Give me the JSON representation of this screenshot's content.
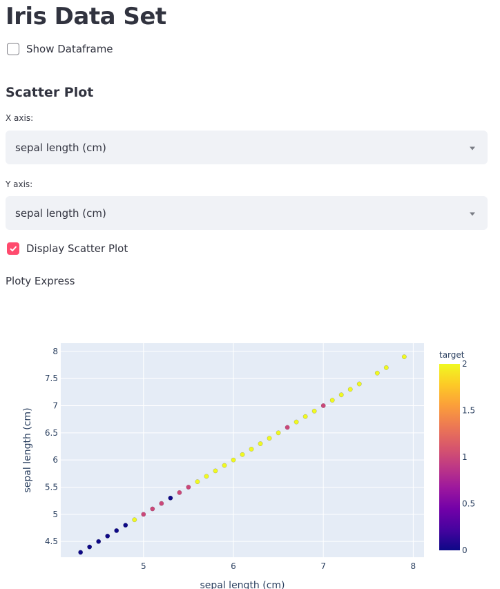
{
  "page": {
    "title": "Iris Data Set"
  },
  "show_dataframe": {
    "label": "Show Dataframe",
    "checked": false
  },
  "scatter_section": {
    "title": "Scatter Plot"
  },
  "x_axis_select": {
    "label": "X axis:",
    "value": "sepal length (cm)"
  },
  "y_axis_select": {
    "label": "Y axis:",
    "value": "sepal length (cm)"
  },
  "display_scatter": {
    "label": "Display Scatter Plot",
    "checked": true
  },
  "caption": "Ploty Express",
  "colors": {
    "accent": "#ff4b6e",
    "plot_bg": "#e5ecf6",
    "select_bg": "#f0f2f6"
  },
  "chart_data": {
    "type": "scatter",
    "xlabel": "sepal length (cm)",
    "ylabel": "sepal length (cm)",
    "xlim": [
      4.08,
      8.12
    ],
    "ylim": [
      4.21,
      8.15
    ],
    "x_ticks": [
      5,
      6,
      7,
      8
    ],
    "y_ticks": [
      4.5,
      5,
      5.5,
      6,
      6.5,
      7,
      7.5,
      8
    ],
    "grid": true,
    "colorbar": {
      "title": "target",
      "range": [
        0,
        2
      ],
      "ticks": [
        0,
        0.5,
        1,
        1.5,
        2
      ]
    },
    "points": [
      {
        "x": 4.3,
        "y": 4.3,
        "color": 0
      },
      {
        "x": 4.4,
        "y": 4.4,
        "color": 0
      },
      {
        "x": 4.5,
        "y": 4.5,
        "color": 0
      },
      {
        "x": 4.6,
        "y": 4.6,
        "color": 0
      },
      {
        "x": 4.7,
        "y": 4.7,
        "color": 0
      },
      {
        "x": 4.8,
        "y": 4.8,
        "color": 0
      },
      {
        "x": 4.9,
        "y": 4.9,
        "color": 2
      },
      {
        "x": 5.0,
        "y": 5.0,
        "color": 1
      },
      {
        "x": 5.1,
        "y": 5.1,
        "color": 1
      },
      {
        "x": 5.2,
        "y": 5.2,
        "color": 1
      },
      {
        "x": 5.3,
        "y": 5.3,
        "color": 0
      },
      {
        "x": 5.4,
        "y": 5.4,
        "color": 1
      },
      {
        "x": 5.5,
        "y": 5.5,
        "color": 1
      },
      {
        "x": 5.6,
        "y": 5.6,
        "color": 2
      },
      {
        "x": 5.7,
        "y": 5.7,
        "color": 2
      },
      {
        "x": 5.8,
        "y": 5.8,
        "color": 2
      },
      {
        "x": 5.9,
        "y": 5.9,
        "color": 2
      },
      {
        "x": 6.0,
        "y": 6.0,
        "color": 2
      },
      {
        "x": 6.1,
        "y": 6.1,
        "color": 2
      },
      {
        "x": 6.2,
        "y": 6.2,
        "color": 2
      },
      {
        "x": 6.3,
        "y": 6.3,
        "color": 2
      },
      {
        "x": 6.4,
        "y": 6.4,
        "color": 2
      },
      {
        "x": 6.5,
        "y": 6.5,
        "color": 2
      },
      {
        "x": 6.6,
        "y": 6.6,
        "color": 1
      },
      {
        "x": 6.7,
        "y": 6.7,
        "color": 2
      },
      {
        "x": 6.8,
        "y": 6.8,
        "color": 2
      },
      {
        "x": 6.9,
        "y": 6.9,
        "color": 2
      },
      {
        "x": 7.0,
        "y": 7.0,
        "color": 1
      },
      {
        "x": 7.1,
        "y": 7.1,
        "color": 2
      },
      {
        "x": 7.2,
        "y": 7.2,
        "color": 2
      },
      {
        "x": 7.3,
        "y": 7.3,
        "color": 2
      },
      {
        "x": 7.4,
        "y": 7.4,
        "color": 2
      },
      {
        "x": 7.6,
        "y": 7.6,
        "color": 2
      },
      {
        "x": 7.7,
        "y": 7.7,
        "color": 2
      },
      {
        "x": 7.9,
        "y": 7.9,
        "color": 2
      }
    ]
  }
}
